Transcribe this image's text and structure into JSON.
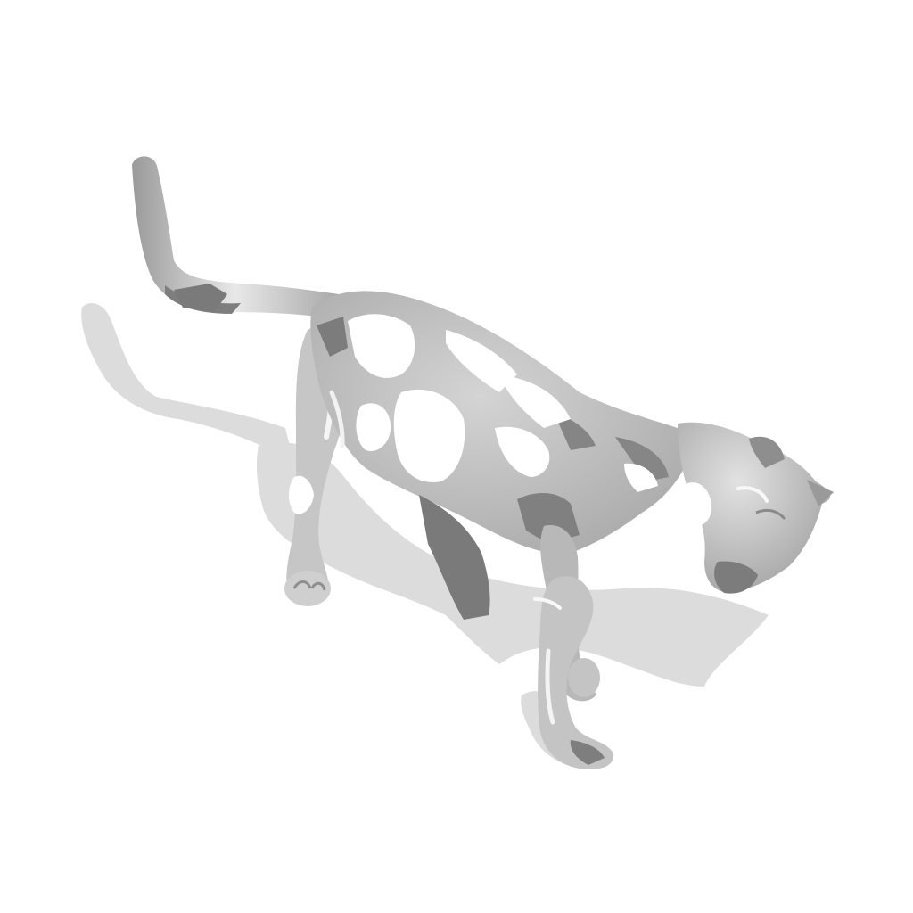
{
  "scene": {
    "subject": "cat-3d-mesh-render",
    "colors": {
      "background": "#ffffff",
      "shadow": "#dedede",
      "body": "#bdbdbd",
      "body_dark": "#8c8c8c",
      "highlight": "#f6f6f6",
      "hole": "#ffffff",
      "backface": "#7d7d7d"
    }
  }
}
